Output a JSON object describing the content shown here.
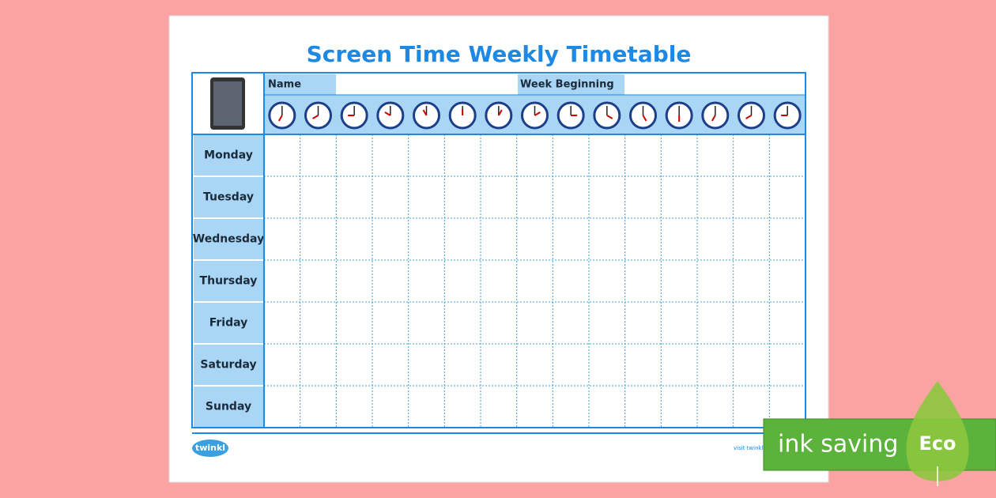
{
  "header": {
    "title": "Screen Time Weekly Timetable",
    "name_label": "Name",
    "week_label": "Week Beginning"
  },
  "table": {
    "rows": [
      "Monday",
      "Tuesday",
      "Wednesday",
      "Thursday",
      "Friday",
      "Saturday",
      "Sunday"
    ]
  },
  "footer": {
    "logo": "twinkl",
    "link": "visit twinkl"
  },
  "badge": {
    "text": "ink saving",
    "label": "Eco"
  }
}
